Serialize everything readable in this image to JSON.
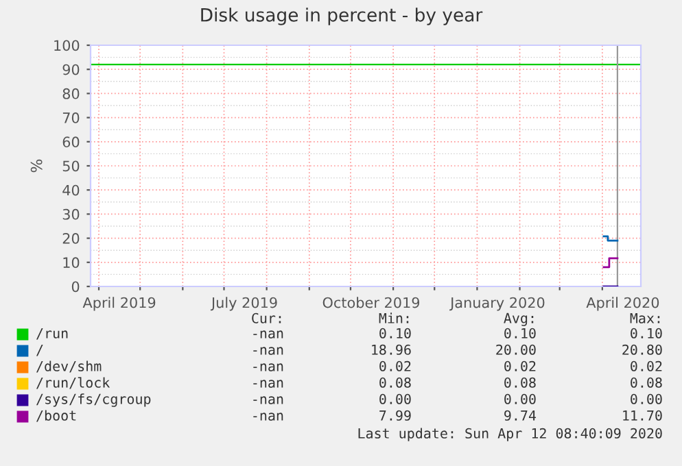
{
  "chart_data": {
    "type": "step",
    "title": "Disk usage in percent - by year",
    "ylabel": "%",
    "xlim": [
      "2019-03-26",
      "2020-04-29"
    ],
    "ylim": [
      0,
      100
    ],
    "yticks": [
      0,
      10,
      20,
      30,
      40,
      50,
      60,
      70,
      80,
      90,
      100
    ],
    "xticks": [
      {
        "value": "2019-04-16",
        "label": "April 2019"
      },
      {
        "value": "2019-07-16",
        "label": "July 2019"
      },
      {
        "value": "2019-10-16",
        "label": "October 2019"
      },
      {
        "value": "2020-01-16",
        "label": "January 2020"
      },
      {
        "value": "2020-04-16",
        "label": "April 2020"
      },
      {
        "value": "2019-04-01",
        "label": null
      },
      {
        "value": "2019-05-01",
        "label": null
      },
      {
        "value": "2019-06-01",
        "label": null
      },
      {
        "value": "2019-07-01",
        "label": null
      },
      {
        "value": "2019-08-01",
        "label": null
      },
      {
        "value": "2019-09-01",
        "label": null
      },
      {
        "value": "2019-10-01",
        "label": null
      },
      {
        "value": "2019-11-01",
        "label": null
      },
      {
        "value": "2019-12-01",
        "label": null
      },
      {
        "value": "2020-01-01",
        "label": null
      },
      {
        "value": "2020-02-01",
        "label": null
      },
      {
        "value": "2020-03-01",
        "label": null
      },
      {
        "value": "2020-04-01",
        "label": null
      }
    ],
    "grid": true,
    "legend": "bottom",
    "series": [
      {
        "name": "/run",
        "color": "#00cc00"
      },
      {
        "name": "/",
        "color": "#0066b3",
        "x": [
          "2020-04-02",
          "2020-04-05",
          "2020-04-12"
        ],
        "values": [
          20.8,
          19.0,
          19.0
        ]
      },
      {
        "name": "/dev/shm",
        "color": "#ff8000"
      },
      {
        "name": "/run/lock",
        "color": "#ffcc00"
      },
      {
        "name": "/sys/fs/cgroup",
        "color": "#330099",
        "x": [
          "2020-04-02",
          "2020-04-12"
        ],
        "values": [
          0.0,
          0.0
        ]
      },
      {
        "name": "/boot",
        "color": "#990099",
        "x": [
          "2020-04-02",
          "2020-04-06",
          "2020-04-12"
        ],
        "values": [
          8.0,
          11.7,
          11.7
        ]
      }
    ],
    "ref_lines": [
      {
        "axis": "y",
        "value": 92,
        "color": "#00cc00"
      },
      {
        "axis": "x",
        "value": "2020-04-12",
        "color": "#999999"
      }
    ],
    "annotations": [
      "Cur:",
      "Min:",
      "Avg:",
      "Max:",
      "-nan",
      "0.10",
      "0.10",
      "0.10",
      "-nan",
      "18.96",
      "20.00",
      "20.80",
      "-nan",
      "0.02",
      "0.02",
      "0.02",
      "-nan",
      "0.08",
      "0.08",
      "0.08",
      "-nan",
      "0.00",
      "0.00",
      "0.00",
      "-nan",
      "7.99",
      "9.74",
      "11.70",
      "Last update: Sun Apr 12 08:40:09 2020"
    ]
  }
}
